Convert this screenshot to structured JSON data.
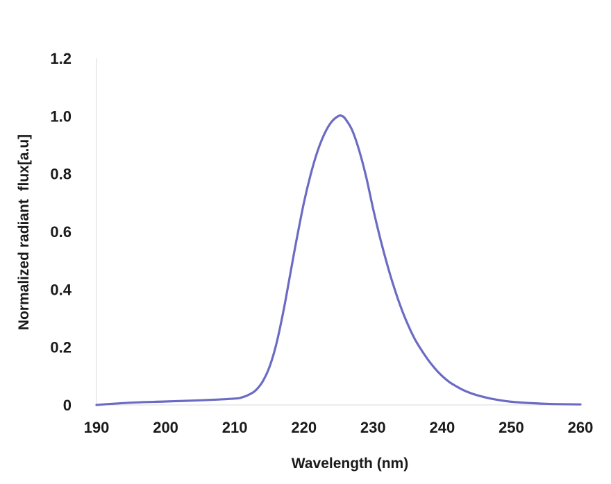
{
  "chart_data": {
    "type": "line",
    "title": "",
    "xlabel": "Wavelength (nm)",
    "ylabel": "Normalized radiant  flux[a.u]",
    "xlim": [
      190,
      260
    ],
    "ylim": [
      0,
      1.2
    ],
    "x_ticks": [
      190,
      200,
      210,
      220,
      230,
      240,
      250,
      260
    ],
    "x_tick_labels": [
      "190",
      "200",
      "210",
      "220",
      "230",
      "240",
      "250",
      "260"
    ],
    "y_ticks": [
      0,
      0.2,
      0.4,
      0.6,
      0.8,
      1.0,
      1.2
    ],
    "y_tick_labels": [
      "0",
      "0.2",
      "0.4",
      "0.6",
      "0.8",
      "1.0",
      "1.2"
    ],
    "grid": false,
    "legend": "none",
    "series": [
      {
        "color": "#6b6bc4",
        "x": [
          190,
          195,
          200,
          205,
          210,
          211,
          212,
          213,
          214,
          215,
          216,
          217,
          218,
          219,
          220,
          221,
          222,
          223,
          224,
          225,
          225.5,
          226,
          227,
          228,
          229,
          230,
          231,
          232,
          233,
          234,
          235,
          236,
          237,
          238,
          239,
          240,
          241,
          242,
          243,
          244,
          245,
          247,
          250,
          255,
          260
        ],
        "y": [
          0.0,
          0.008,
          0.012,
          0.016,
          0.022,
          0.026,
          0.035,
          0.05,
          0.08,
          0.13,
          0.21,
          0.32,
          0.45,
          0.58,
          0.7,
          0.8,
          0.88,
          0.94,
          0.98,
          1.0,
          1.0,
          0.99,
          0.95,
          0.88,
          0.79,
          0.68,
          0.58,
          0.49,
          0.41,
          0.34,
          0.28,
          0.23,
          0.19,
          0.155,
          0.125,
          0.1,
          0.08,
          0.065,
          0.052,
          0.042,
          0.034,
          0.022,
          0.011,
          0.004,
          0.002
        ]
      }
    ]
  }
}
